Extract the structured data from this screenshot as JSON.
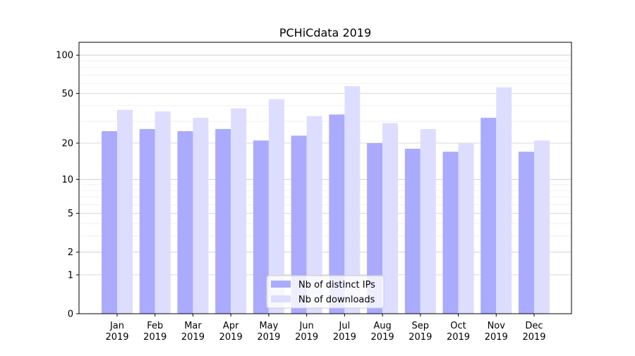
{
  "chart_data": {
    "type": "bar",
    "title": "PCHiCdata 2019",
    "xlabel": "",
    "ylabel": "",
    "yscale": "log(1+x)",
    "ylim": [
      0,
      120
    ],
    "yticks": [
      0,
      1,
      2,
      5,
      10,
      20,
      50,
      100
    ],
    "grid": true,
    "legend_position": "bottom-center",
    "categories": [
      "Jan\n2019",
      "Feb\n2019",
      "Mar\n2019",
      "Apr\n2019",
      "May\n2019",
      "Jun\n2019",
      "Jul\n2019",
      "Aug\n2019",
      "Sep\n2019",
      "Oct\n2019",
      "Nov\n2019",
      "Dec\n2019"
    ],
    "series": [
      {
        "name": "Nb of distinct IPs",
        "color": "#aaaaff",
        "values": [
          25,
          26,
          25,
          26,
          21,
          23,
          34,
          20,
          18,
          17,
          32,
          17
        ]
      },
      {
        "name": "Nb of downloads",
        "color": "#ddddff",
        "values": [
          37,
          36,
          32,
          38,
          45,
          33,
          57,
          29,
          26,
          20,
          56,
          21
        ]
      }
    ]
  }
}
